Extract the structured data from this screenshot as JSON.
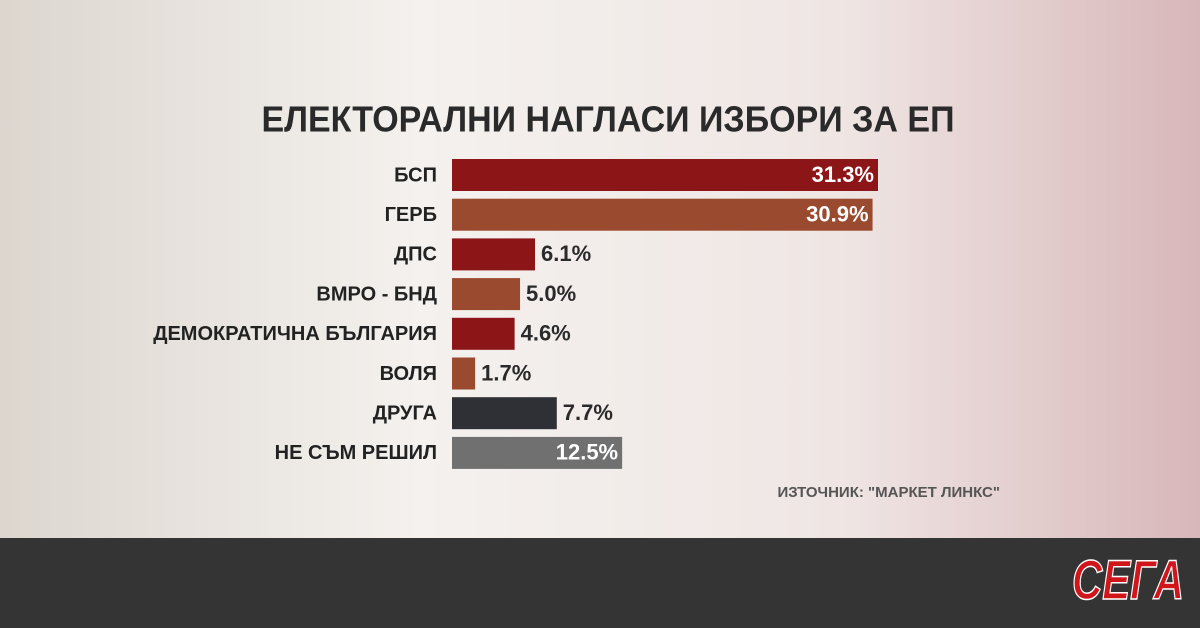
{
  "chart_data": {
    "type": "bar",
    "orientation": "horizontal",
    "title": "ЕЛЕКТОРАЛНИ НАГЛАСИ ИЗБОРИ ЗА ЕП",
    "categories": [
      "БСП",
      "ГЕРБ",
      "ДПС",
      "ВМРО - БНД",
      "ДЕМОКРАТИЧНА БЪЛГАРИЯ",
      "ВОЛЯ",
      "ДРУГА",
      "НЕ СЪМ РЕШИЛ"
    ],
    "values": [
      31.3,
      30.9,
      6.1,
      5.0,
      4.6,
      1.7,
      7.7,
      12.5
    ],
    "value_labels": [
      "31.3%",
      "30.9%",
      "6.1%",
      "5.0%",
      "4.6%",
      "1.7%",
      "7.7%",
      "12.5%"
    ],
    "colors": [
      "#8c1518",
      "#9a4a2e",
      "#8c1518",
      "#9a4a2e",
      "#8c1518",
      "#9a4a2e",
      "#2f2f36",
      "#707070"
    ],
    "source": "ИЗТОЧНИК: \"МАРКЕТ ЛИНКС\"",
    "brand": "СЕГА"
  }
}
